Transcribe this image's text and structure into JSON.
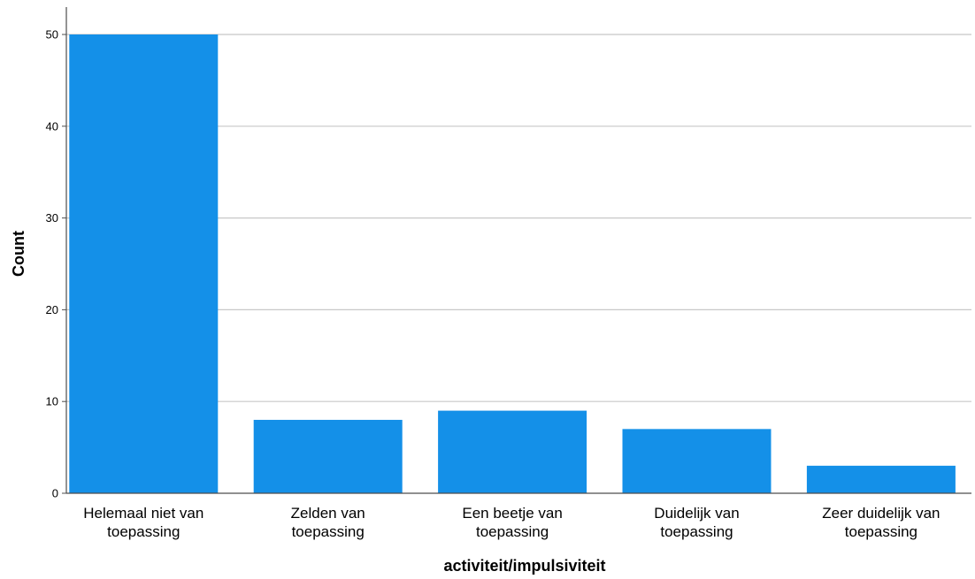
{
  "chart_data": {
    "type": "bar",
    "categories": [
      "Helemaal niet van toepassing",
      "Zelden van toepassing",
      "Een beetje van toepassing",
      "Duidelijk van toepassing",
      "Zeer duidelijk van toepassing"
    ],
    "category_lines": [
      [
        "Helemaal niet van",
        "toepassing"
      ],
      [
        "Zelden van",
        "toepassing"
      ],
      [
        "Een beetje van",
        "toepassing"
      ],
      [
        "Duidelijk van",
        "toepassing"
      ],
      [
        "Zeer duidelijk van",
        "toepassing"
      ]
    ],
    "values": [
      50,
      8,
      9,
      7,
      3
    ],
    "title": "",
    "xlabel": "activiteit/impulsiviteit",
    "ylabel": "Count",
    "ylim": [
      0,
      52
    ],
    "yticks": [
      0,
      10,
      20,
      30,
      40,
      50
    ],
    "grid": true,
    "bar_color": "#1490e8",
    "grid_color": "#c8c8c8",
    "axis_color": "#4d4d4d"
  }
}
